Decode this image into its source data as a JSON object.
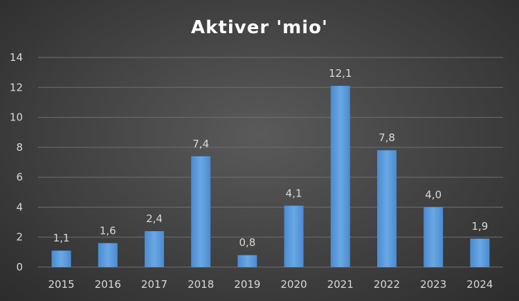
{
  "chart_data": {
    "type": "bar",
    "title": "Aktiver 'mio'",
    "xlabel": "",
    "ylabel": "",
    "categories": [
      "2015",
      "2016",
      "2017",
      "2018",
      "2019",
      "2020",
      "2021",
      "2022",
      "2023",
      "2024"
    ],
    "values": [
      1.1,
      1.6,
      2.4,
      7.4,
      0.8,
      4.1,
      12.1,
      7.8,
      4.0,
      1.9
    ],
    "data_labels": [
      "1,1",
      "1,6",
      "2,4",
      "7,4",
      "0,8",
      "4,1",
      "12,1",
      "7,8",
      "4,0",
      "1,9"
    ],
    "ylim": [
      0,
      14
    ],
    "yticks": [
      0,
      2,
      4,
      6,
      8,
      10,
      12,
      14
    ],
    "grid": true,
    "legend": "none",
    "bar_color": "#5b9bd5",
    "background": "#404040"
  }
}
